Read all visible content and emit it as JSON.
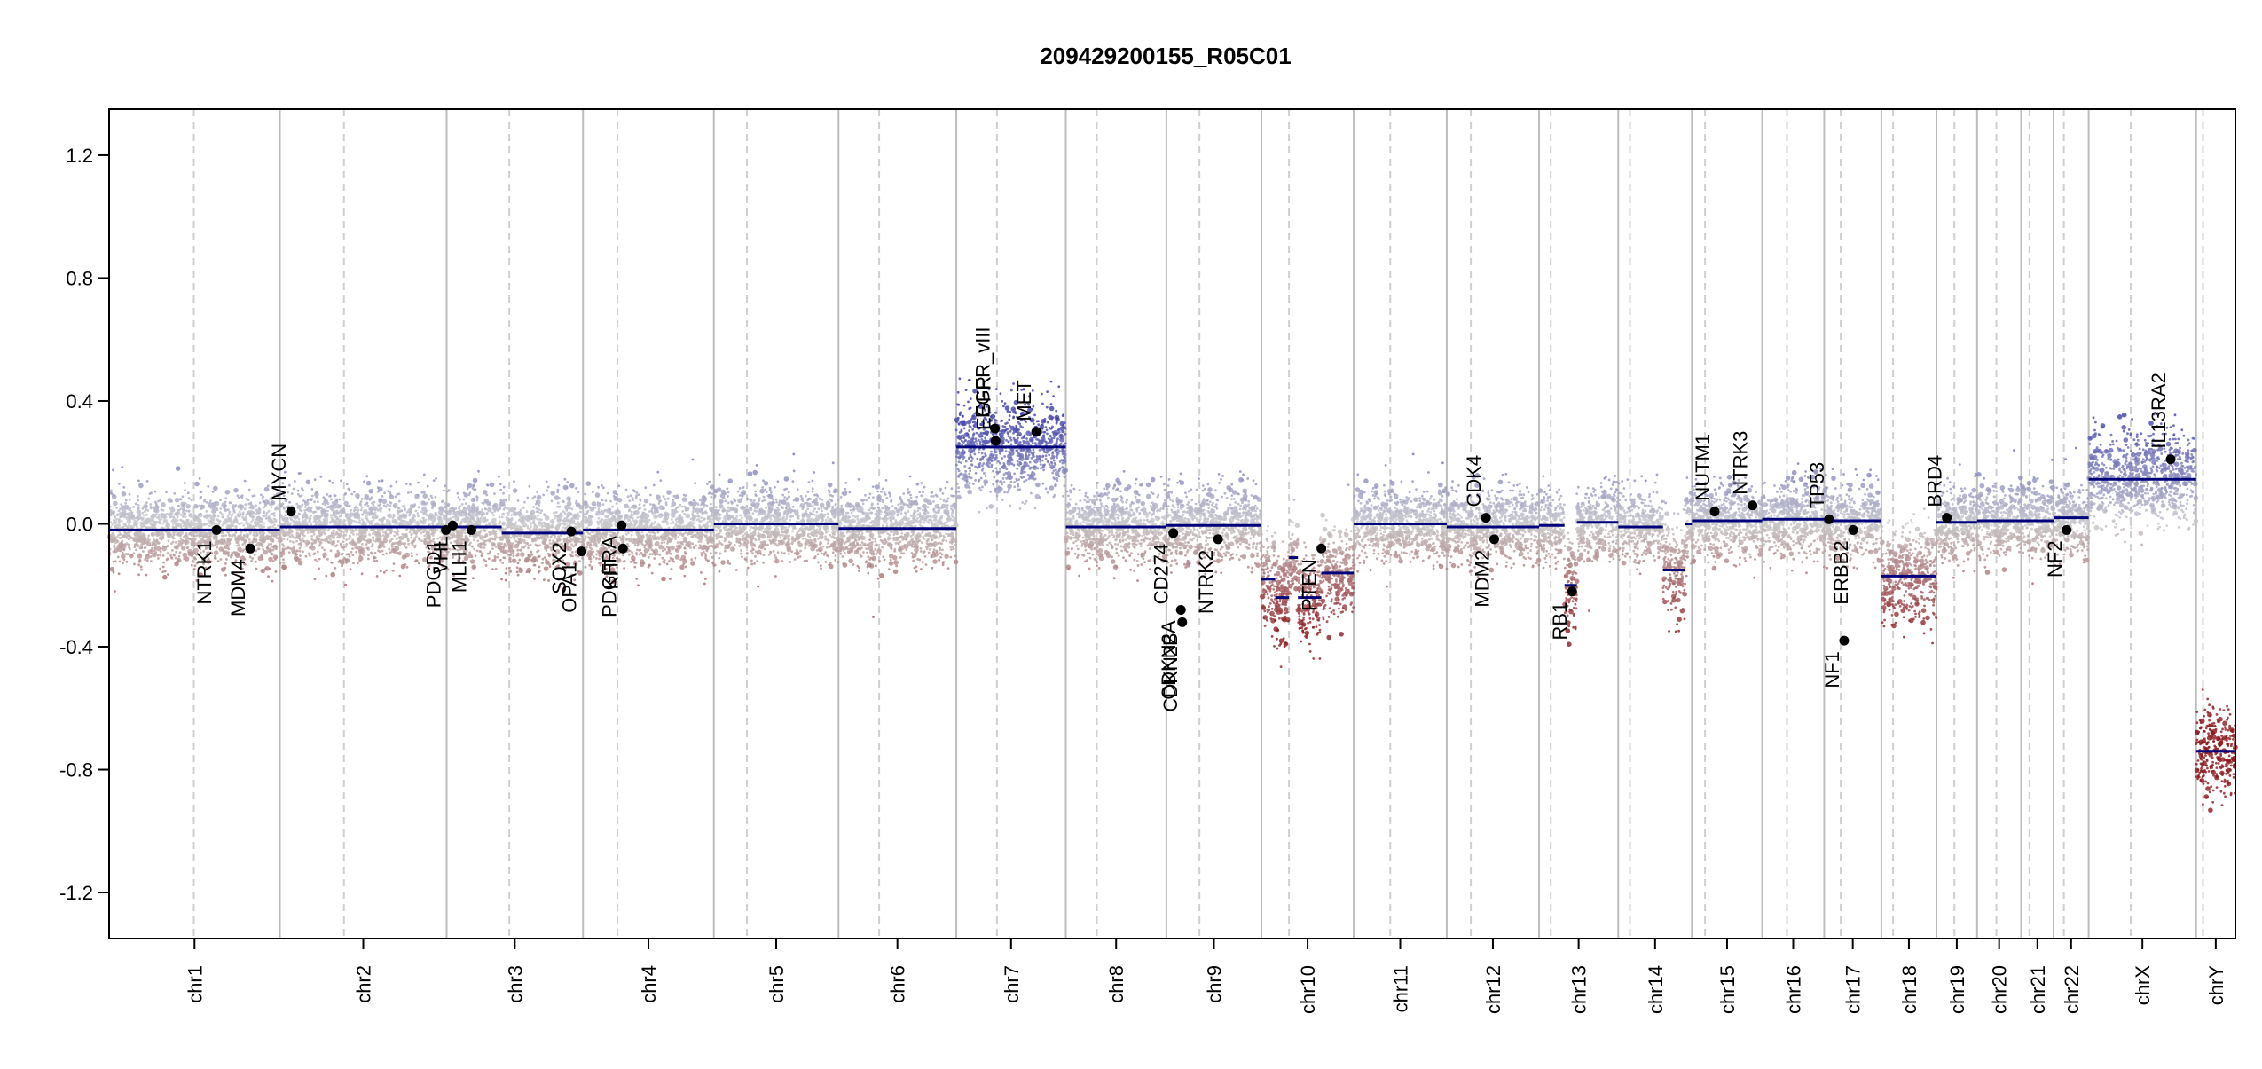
{
  "chart_data": {
    "type": "scatter",
    "title": "209429200155_R05C01",
    "xlabel": "",
    "ylabel": "",
    "ylim": [
      -1.35,
      1.35
    ],
    "y_ticks": [
      1.2,
      0.8,
      0.4,
      0.0,
      -0.4,
      -0.8,
      -1.2
    ],
    "y_tick_labels": [
      "1.2",
      "0.8",
      "0.4",
      "0.0",
      "-0.4",
      "-0.8",
      "-1.2"
    ],
    "colors": {
      "gain": "#5b5fb0",
      "loss": "#8b1a1a",
      "neutral": "#c8c8c8",
      "segment": "#00007a",
      "gene": "#000000"
    },
    "grid": "chromosome separators (solid) and centromeres (dashed)",
    "chromosomes": [
      {
        "name": "chr1",
        "start": 0,
        "end": 248,
        "centromere": 123
      },
      {
        "name": "chr2",
        "start": 248,
        "end": 490,
        "centromere": 341
      },
      {
        "name": "chr3",
        "start": 490,
        "end": 688,
        "centromere": 581
      },
      {
        "name": "chr4",
        "start": 688,
        "end": 878,
        "centromere": 738
      },
      {
        "name": "chr5",
        "start": 878,
        "end": 1059,
        "centromere": 926
      },
      {
        "name": "chr6",
        "start": 1059,
        "end": 1230,
        "centromere": 1118
      },
      {
        "name": "chr7",
        "start": 1230,
        "end": 1389,
        "centromere": 1289
      },
      {
        "name": "chr8",
        "start": 1389,
        "end": 1535,
        "centromere": 1434
      },
      {
        "name": "chr9",
        "start": 1535,
        "end": 1673,
        "centromere": 1583
      },
      {
        "name": "chr10",
        "start": 1673,
        "end": 1807,
        "centromere": 1713
      },
      {
        "name": "chr11",
        "start": 1807,
        "end": 1942,
        "centromere": 1860
      },
      {
        "name": "chr12",
        "start": 1942,
        "end": 2076,
        "centromere": 1977
      },
      {
        "name": "chr13",
        "start": 2076,
        "end": 2191,
        "centromere": 2093
      },
      {
        "name": "chr14",
        "start": 2191,
        "end": 2298,
        "centromere": 2208
      },
      {
        "name": "chr15",
        "start": 2298,
        "end": 2400,
        "centromere": 2317
      },
      {
        "name": "chr16",
        "start": 2400,
        "end": 2490,
        "centromere": 2436
      },
      {
        "name": "chr17",
        "start": 2490,
        "end": 2573,
        "centromere": 2514
      },
      {
        "name": "chr18",
        "start": 2573,
        "end": 2653,
        "centromere": 2590
      },
      {
        "name": "chr19",
        "start": 2653,
        "end": 2712,
        "centromere": 2679
      },
      {
        "name": "chr20",
        "start": 2712,
        "end": 2776,
        "centromere": 2740
      },
      {
        "name": "chr21",
        "start": 2776,
        "end": 2823,
        "centromere": 2788
      },
      {
        "name": "chr22",
        "start": 2823,
        "end": 2874,
        "centromere": 2838
      },
      {
        "name": "chrX",
        "start": 2874,
        "end": 3030,
        "centromere": 2935
      },
      {
        "name": "chrY",
        "start": 3030,
        "end": 3087,
        "centromere": 3040
      }
    ],
    "segments": [
      {
        "start": 0,
        "end": 248,
        "value": -0.02
      },
      {
        "start": 248,
        "end": 490,
        "value": -0.01
      },
      {
        "start": 490,
        "end": 570,
        "value": -0.01
      },
      {
        "start": 570,
        "end": 688,
        "value": -0.03
      },
      {
        "start": 688,
        "end": 878,
        "value": -0.02
      },
      {
        "start": 878,
        "end": 1059,
        "value": 0.0
      },
      {
        "start": 1059,
        "end": 1230,
        "value": -0.015
      },
      {
        "start": 1230,
        "end": 1389,
        "value": 0.25
      },
      {
        "start": 1389,
        "end": 1535,
        "value": -0.01
      },
      {
        "start": 1535,
        "end": 1673,
        "value": -0.005
      },
      {
        "start": 1673,
        "end": 1693,
        "value": -0.18
      },
      {
        "start": 1693,
        "end": 1713,
        "value": -0.24
      },
      {
        "start": 1713,
        "end": 1726,
        "value": -0.11
      },
      {
        "start": 1726,
        "end": 1760,
        "value": -0.24
      },
      {
        "start": 1760,
        "end": 1807,
        "value": -0.16
      },
      {
        "start": 1807,
        "end": 1942,
        "value": 0.0
      },
      {
        "start": 1942,
        "end": 2076,
        "value": -0.01
      },
      {
        "start": 2076,
        "end": 2113,
        "value": -0.005
      },
      {
        "start": 2113,
        "end": 2131,
        "value": -0.2
      },
      {
        "start": 2131,
        "end": 2191,
        "value": 0.005
      },
      {
        "start": 2191,
        "end": 2256,
        "value": -0.01
      },
      {
        "start": 2256,
        "end": 2288,
        "value": -0.15
      },
      {
        "start": 2288,
        "end": 2298,
        "value": 0.0
      },
      {
        "start": 2298,
        "end": 2400,
        "value": 0.01
      },
      {
        "start": 2400,
        "end": 2490,
        "value": 0.015
      },
      {
        "start": 2490,
        "end": 2573,
        "value": 0.01
      },
      {
        "start": 2573,
        "end": 2653,
        "value": -0.17
      },
      {
        "start": 2653,
        "end": 2712,
        "value": 0.005
      },
      {
        "start": 2712,
        "end": 2776,
        "value": 0.01
      },
      {
        "start": 2776,
        "end": 2823,
        "value": 0.01
      },
      {
        "start": 2823,
        "end": 2874,
        "value": 0.02
      },
      {
        "start": 2874,
        "end": 3030,
        "value": 0.145
      },
      {
        "start": 3030,
        "end": 3087,
        "value": -0.74
      }
    ],
    "genes": [
      {
        "name": "NTRK1",
        "x": 156,
        "y": -0.02,
        "label": "below"
      },
      {
        "name": "MDM4",
        "x": 205,
        "y": -0.08,
        "label": "below"
      },
      {
        "name": "MYCN",
        "x": 264,
        "y": 0.04,
        "label": "above"
      },
      {
        "name": "PDGD1",
        "x": 489,
        "y": -0.02,
        "label": "below"
      },
      {
        "name": "VHL",
        "x": 499,
        "y": -0.005,
        "label": "below"
      },
      {
        "name": "MLH1",
        "x": 526,
        "y": -0.02,
        "label": "below"
      },
      {
        "name": "SOX2",
        "x": 671,
        "y": -0.025,
        "label": "below"
      },
      {
        "name": "OPA1",
        "x": 686,
        "y": -0.09,
        "label": "below"
      },
      {
        "name": "PDGFRA",
        "x": 744,
        "y": -0.005,
        "label": "below"
      },
      {
        "name": "KIT",
        "x": 746,
        "y": -0.08,
        "label": "below"
      },
      {
        "name": "EGFR_vIII",
        "x": 1286,
        "y": 0.31,
        "label": "above"
      },
      {
        "name": "EGFR",
        "x": 1287,
        "y": 0.27,
        "label": "above"
      },
      {
        "name": "MET",
        "x": 1346,
        "y": 0.3,
        "label": "above"
      },
      {
        "name": "CD274",
        "x": 1545,
        "y": -0.03,
        "label": "below"
      },
      {
        "name": "CDKN2A",
        "x": 1556,
        "y": -0.28,
        "label": "below"
      },
      {
        "name": "CDKN2B",
        "x": 1558,
        "y": -0.32,
        "label": "below"
      },
      {
        "name": "NTRK2",
        "x": 1610,
        "y": -0.05,
        "label": "below"
      },
      {
        "name": "PTEN",
        "x": 1760,
        "y": -0.08,
        "label": "below"
      },
      {
        "name": "CDK4",
        "x": 1999,
        "y": 0.02,
        "label": "above"
      },
      {
        "name": "MDM2",
        "x": 2011,
        "y": -0.05,
        "label": "below"
      },
      {
        "name": "RB1",
        "x": 2124,
        "y": -0.22,
        "label": "below"
      },
      {
        "name": "NUTM1",
        "x": 2331,
        "y": 0.04,
        "label": "above"
      },
      {
        "name": "NTRK3",
        "x": 2386,
        "y": 0.06,
        "label": "above"
      },
      {
        "name": "TP53",
        "x": 2497,
        "y": 0.015,
        "label": "above"
      },
      {
        "name": "ERBB2",
        "x": 2532,
        "y": -0.02,
        "label": "below"
      },
      {
        "name": "NF1",
        "x": 2519,
        "y": -0.38,
        "label": "below"
      },
      {
        "name": "BRD4",
        "x": 2668,
        "y": 0.02,
        "label": "above"
      },
      {
        "name": "NF2",
        "x": 2842,
        "y": -0.02,
        "label": "below"
      },
      {
        "name": "IL13RA2",
        "x": 2993,
        "y": 0.21,
        "label": "above"
      }
    ]
  }
}
